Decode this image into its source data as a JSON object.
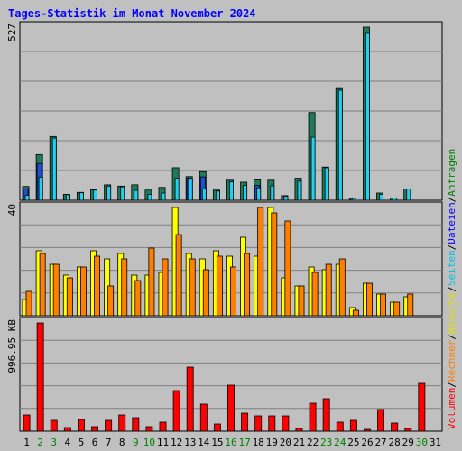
{
  "title": "Tages-Statistik im Monat November 2024",
  "chart_data": {
    "type": "bar",
    "days": [
      "1",
      "2",
      "3",
      "4",
      "5",
      "6",
      "7",
      "8",
      "9",
      "10",
      "11",
      "12",
      "13",
      "14",
      "15",
      "16",
      "17",
      "18",
      "19",
      "20",
      "21",
      "22",
      "23",
      "24",
      "25",
      "26",
      "27",
      "28",
      "29",
      "30",
      "31"
    ],
    "weekend_days": [
      "2",
      "3",
      "9",
      "10",
      "16",
      "17",
      "23",
      "24",
      "30"
    ],
    "panels": [
      {
        "scale_label": "527",
        "ymax": 527,
        "series": [
          {
            "name": "Anfragen",
            "color": "#1f7a5a",
            "values": [
              42,
              139,
              194,
              18,
              24,
              32,
              47,
              43,
              47,
              31,
              39,
              99,
              72,
              87,
              31,
              61,
              55,
              62,
              61,
              14,
              67,
              267,
              101,
              340,
              4,
              527,
              22,
              7,
              34,
              0,
              0
            ]
          },
          {
            "name": "Dateien",
            "color": "#1e4fd8",
            "values": [
              35,
              112,
              0,
              0,
              0,
              0,
              0,
              0,
              0,
              0,
              0,
              0,
              67,
              71,
              0,
              0,
              0,
              45,
              0,
              0,
              0,
              0,
              0,
              0,
              0,
              0,
              0,
              0,
              0,
              0,
              0
            ]
          },
          {
            "name": "Seiten",
            "color": "#22d0f0",
            "values": [
              15,
              70,
              189,
              17,
              23,
              31,
              43,
              41,
              30,
              18,
              22,
              67,
              64,
              34,
              28,
              56,
              45,
              38,
              44,
              12,
              58,
              192,
              99,
              335,
              4,
              508,
              18,
              7,
              34,
              0,
              0
            ]
          }
        ]
      },
      {
        "scale_label": "40",
        "ymax": 40,
        "series": [
          {
            "name": "Besuche",
            "color": "#ffff00",
            "values": [
              6,
              24,
              19,
              15,
              18,
              24,
              21,
              23,
              15,
              15,
              16,
              40,
              23,
              21,
              24,
              22,
              29,
              22,
              40,
              14,
              11,
              18,
              17,
              19,
              3,
              12,
              8,
              5,
              7,
              0,
              0
            ]
          },
          {
            "name": "Rechner",
            "color": "#ff8000",
            "values": [
              9,
              23,
              19,
              14,
              18,
              22,
              11,
              21,
              13,
              25,
              21,
              30,
              21,
              17,
              22,
              18,
              23,
              40,
              38,
              35,
              11,
              16,
              19,
              21,
              2,
              12,
              8,
              5,
              8,
              0,
              0
            ]
          }
        ]
      },
      {
        "scale_label": "996.95 KB",
        "ymax": 1200,
        "series": [
          {
            "name": "Volumen",
            "color": "#ff0000",
            "values": [
              180,
              1200,
              120,
              40,
              130,
              50,
              120,
              180,
              150,
              50,
              100,
              450,
              710,
              300,
              80,
              510,
              200,
              170,
              170,
              170,
              30,
              310,
              360,
              100,
              120,
              10,
              240,
              90,
              30,
              530,
              0
            ]
          }
        ]
      }
    ],
    "legend": [
      "Volumen",
      "/",
      "Rechner",
      "/",
      "Besuche",
      "/",
      "Seiten",
      "/",
      "Dateien",
      "/",
      "Anfragen"
    ]
  }
}
